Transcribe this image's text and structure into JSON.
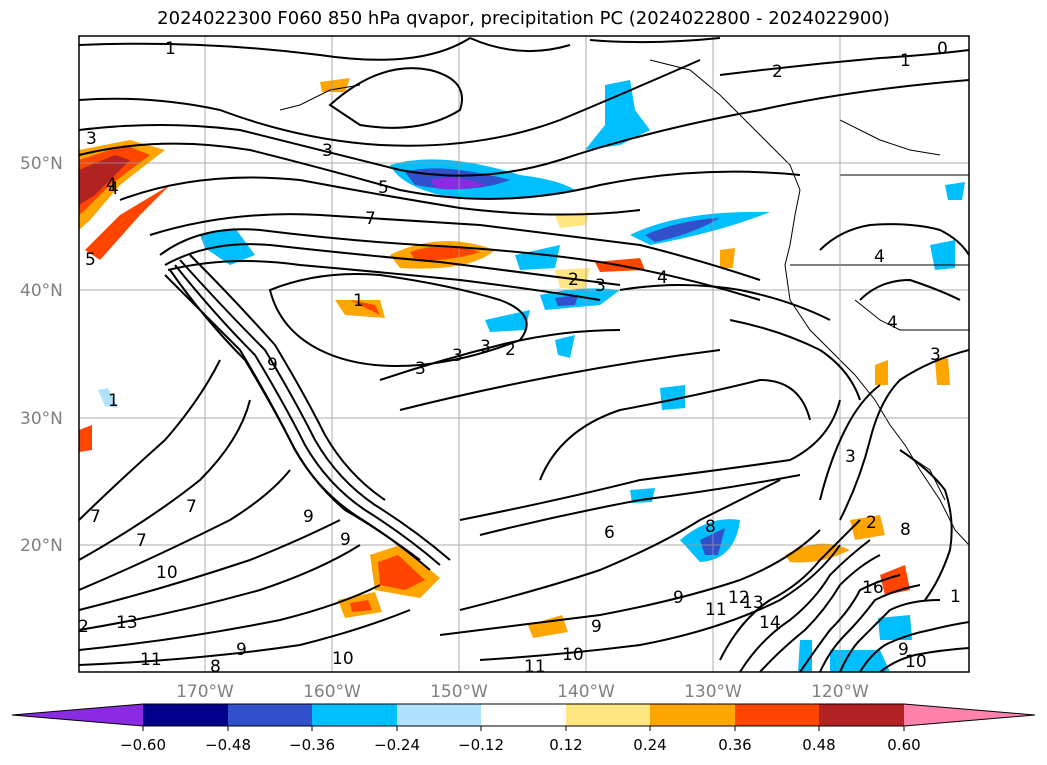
{
  "title": "2024022300 F060 850 hPa qvapor, precipitation PC (2024022800 - 2024022900)",
  "lat_labels": [
    "50°N",
    "40°N",
    "30°N",
    "20°N"
  ],
  "lon_labels": [
    "170°W",
    "160°W",
    "150°W",
    "140°W",
    "130°W",
    "120°W"
  ],
  "colorbar": {
    "colors": [
      "#8a2be2",
      "#00008b",
      "#3050cc",
      "#00bfff",
      "#b0e2ff",
      "#ffffff",
      "#ffe680",
      "#ffa500",
      "#ff4500",
      "#b22222",
      "#ff82ab"
    ],
    "tick_labels": [
      "−0.60",
      "−0.48",
      "−0.36",
      "−0.24",
      "−0.12",
      "0.12",
      "0.24",
      "0.36",
      "0.48",
      "0.60"
    ]
  },
  "contour_labels": [
    "1",
    "0",
    "2",
    "1",
    "3",
    "5",
    "7",
    "3",
    "1",
    "2",
    "3",
    "4",
    "4",
    "4",
    "3",
    "3",
    "3",
    "2",
    "1",
    "4",
    "9",
    "7",
    "7",
    "10",
    "13",
    "11",
    "9",
    "8",
    "10",
    "11",
    "9",
    "10",
    "6",
    "9",
    "8",
    "11",
    "12",
    "13",
    "14",
    "3",
    "2",
    "8",
    "16",
    "9",
    "10",
    "1",
    "3",
    "4",
    "5",
    "7",
    "9",
    "2",
    "9"
  ]
}
